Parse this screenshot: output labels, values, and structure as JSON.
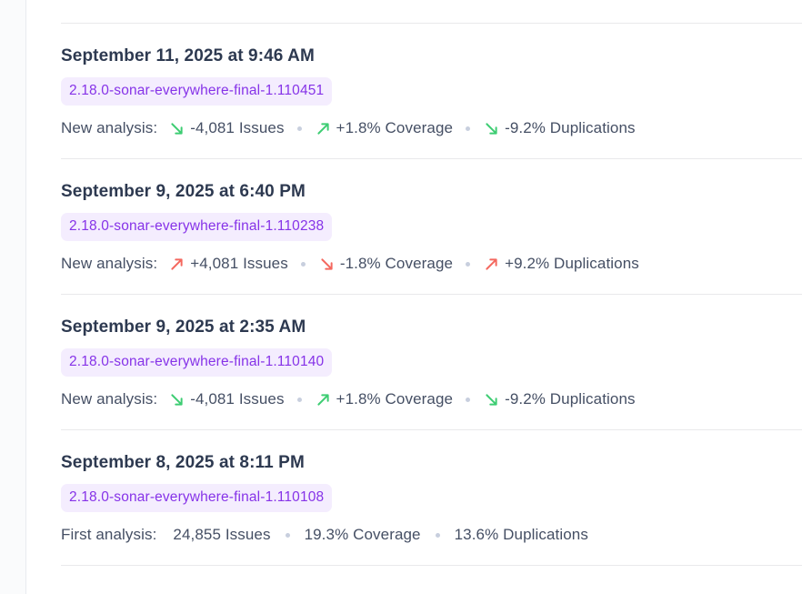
{
  "theme": {
    "accent_purple": "#8633e8",
    "badge_bg": "#f4edfe",
    "trend_good": "#3ecd73",
    "trend_bad": "#f4685f",
    "title_color": "#2d3950",
    "body_color": "#454f64",
    "divider_color": "#e9e9eb",
    "dot_color": "#c8cfde",
    "rail_bg": "#fafbfc",
    "rail_border": "#e8ebef"
  },
  "entries": [
    {
      "date": "September 11, 2025 at 9:46 AM",
      "version": "2.18.0-sonar-everywhere-final-1.110451",
      "label": "New analysis:",
      "type": "new",
      "metrics": [
        {
          "text": "-4,081 Issues",
          "trend": "down",
          "sentiment": "good"
        },
        {
          "text": "+1.8% Coverage",
          "trend": "up",
          "sentiment": "good"
        },
        {
          "text": "-9.2% Duplications",
          "trend": "down",
          "sentiment": "good"
        }
      ]
    },
    {
      "date": "September 9, 2025 at 6:40 PM",
      "version": "2.18.0-sonar-everywhere-final-1.110238",
      "label": "New analysis:",
      "type": "new",
      "metrics": [
        {
          "text": "+4,081 Issues",
          "trend": "up",
          "sentiment": "bad"
        },
        {
          "text": "-1.8% Coverage",
          "trend": "down",
          "sentiment": "bad"
        },
        {
          "text": "+9.2% Duplications",
          "trend": "up",
          "sentiment": "bad"
        }
      ]
    },
    {
      "date": "September 9, 2025 at 2:35 AM",
      "version": "2.18.0-sonar-everywhere-final-1.110140",
      "label": "New analysis:",
      "type": "new",
      "metrics": [
        {
          "text": "-4,081 Issues",
          "trend": "down",
          "sentiment": "good"
        },
        {
          "text": "+1.8% Coverage",
          "trend": "up",
          "sentiment": "good"
        },
        {
          "text": "-9.2% Duplications",
          "trend": "down",
          "sentiment": "good"
        }
      ]
    },
    {
      "date": "September 8, 2025 at 8:11 PM",
      "version": "2.18.0-sonar-everywhere-final-1.110108",
      "label": "First analysis:",
      "type": "first",
      "metrics": [
        {
          "text": "24,855 Issues",
          "trend": null,
          "sentiment": null
        },
        {
          "text": "19.3% Coverage",
          "trend": null,
          "sentiment": null
        },
        {
          "text": "13.6% Duplications",
          "trend": null,
          "sentiment": null
        }
      ]
    }
  ]
}
